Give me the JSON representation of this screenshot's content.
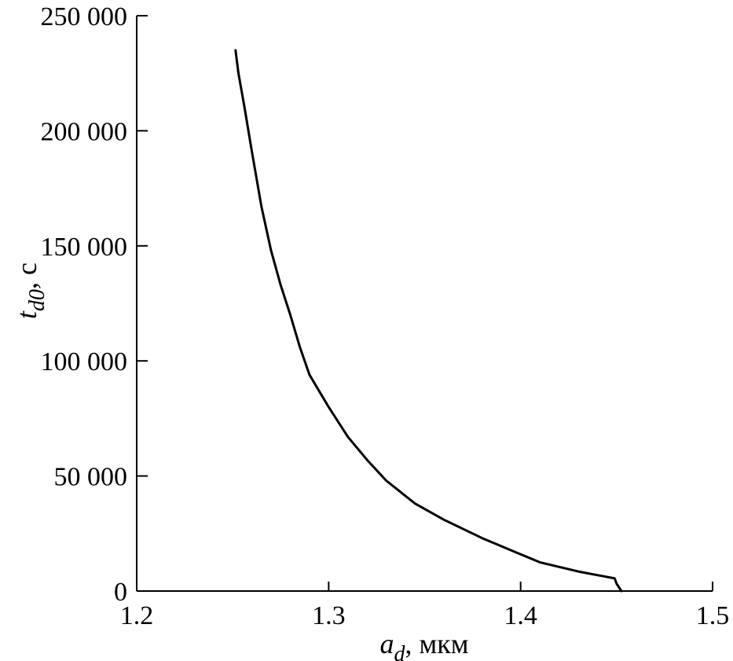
{
  "chart_data": {
    "type": "line",
    "title": "",
    "xlabel": {
      "symbol": "a",
      "subscript": "d",
      "unit": ", мкм"
    },
    "ylabel": {
      "symbol": "t",
      "subscript": "d0",
      "unit": ", с"
    },
    "xlim": [
      1.2,
      1.5
    ],
    "ylim": [
      0,
      250000
    ],
    "xticks": [
      1.2,
      1.3,
      1.4,
      1.5
    ],
    "xtick_labels": [
      "1.2",
      "1.3",
      "1.4",
      "1.5"
    ],
    "yticks": [
      0,
      50000,
      100000,
      150000,
      200000,
      250000
    ],
    "ytick_labels": [
      "0",
      "50 000",
      "100 000",
      "150 000",
      "200 000",
      "250 000"
    ],
    "grid": false,
    "legend": "none",
    "series": [
      {
        "color": "#000000",
        "x": [
          1.2515,
          1.253,
          1.256,
          1.26,
          1.265,
          1.27,
          1.275,
          1.28,
          1.285,
          1.29,
          1.295,
          1.3,
          1.31,
          1.32,
          1.33,
          1.345,
          1.36,
          1.38,
          1.4,
          1.41,
          1.43,
          1.449,
          1.45,
          1.4525
        ],
        "y": [
          235000,
          225000,
          211000,
          191000,
          167000,
          148000,
          133000,
          120000,
          106000,
          94000,
          87000,
          80000,
          67000,
          57000,
          48000,
          38000,
          31000,
          23000,
          16000,
          12500,
          8500,
          5500,
          3200,
          0
        ]
      }
    ]
  }
}
